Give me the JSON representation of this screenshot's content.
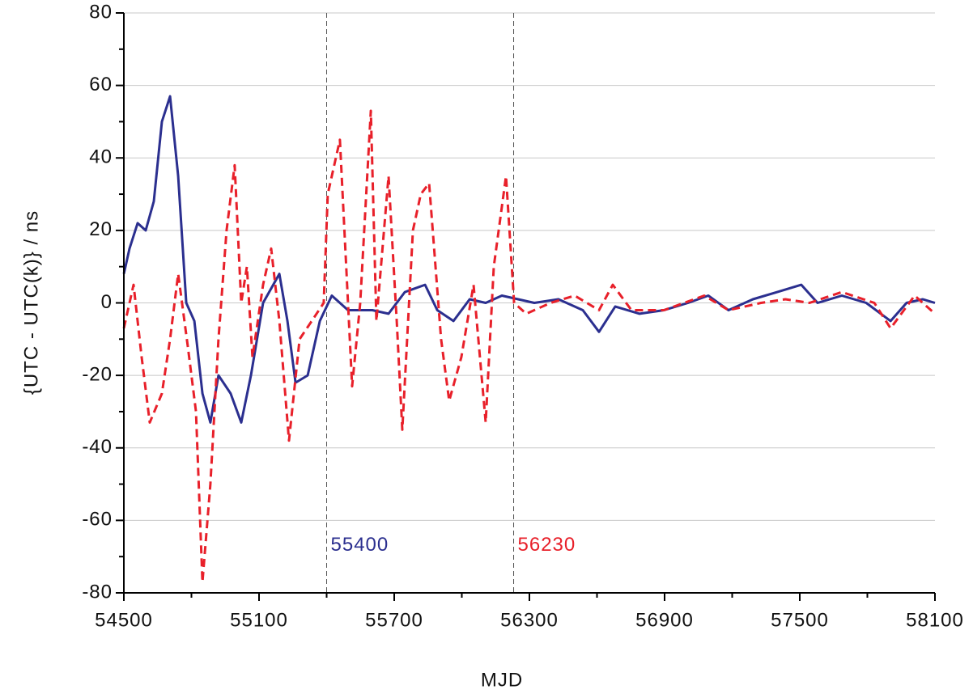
{
  "chart_data": {
    "type": "line",
    "xlabel": "MJD",
    "ylabel": "{UTC - UTC(k)} / ns",
    "xlim": [
      54500,
      58100
    ],
    "xticks": [
      54500,
      55100,
      55700,
      56300,
      56900,
      57500,
      58100
    ],
    "xminorticks": [
      54800,
      55400,
      56000,
      56600,
      57200,
      57800
    ],
    "ylim": [
      -80,
      80
    ],
    "yticks": [
      -80,
      -60,
      -40,
      -20,
      0,
      20,
      40,
      60,
      80
    ],
    "yminorticks": [
      -70,
      -50,
      -30,
      -10,
      10,
      30,
      50,
      70
    ],
    "grid": true,
    "series": [
      {
        "color": "#2b2f8f",
        "dash": false,
        "x": [
          54500,
          54525,
          54561,
          54597,
          54633,
          54669,
          54705,
          54741,
          54777,
          54813,
          54849,
          54884,
          54920,
          54974,
          55021,
          55064,
          55118,
          55190,
          55226,
          55262,
          55316,
          55370,
          55423,
          55495,
          55603,
          55675,
          55747,
          55837,
          55891,
          55963,
          56035,
          56106,
          56178,
          56250,
          56322,
          56429,
          56537,
          56609,
          56681,
          56789,
          56897,
          57004,
          57094,
          57184,
          57292,
          57400,
          57507,
          57579,
          57687,
          57795,
          57903,
          57974,
          58046,
          58100
        ],
        "values": [
          8,
          15,
          22,
          20,
          28,
          50,
          57,
          35,
          0,
          -5,
          -25,
          -33,
          -20,
          -25,
          -33,
          -20,
          0,
          8,
          -5,
          -22,
          -20,
          -5,
          2,
          -2,
          -2,
          -3,
          3,
          5,
          -2,
          -5,
          1,
          0,
          2,
          1,
          0,
          1,
          -2,
          -8,
          -1,
          -3,
          -2,
          0,
          2,
          -2,
          1,
          3,
          5,
          0,
          2,
          0,
          -5,
          0,
          1,
          0
        ]
      },
      {
        "color": "#e8202a",
        "dash": true,
        "x": [
          54500,
          54543,
          54579,
          54615,
          54669,
          54705,
          54741,
          54784,
          54820,
          54849,
          54884,
          54920,
          54956,
          54992,
          55021,
          55046,
          55071,
          55118,
          55154,
          55190,
          55233,
          55280,
          55334,
          55387,
          55405,
          55459,
          55487,
          55513,
          55549,
          55596,
          55621,
          55675,
          55711,
          55736,
          55783,
          55818,
          55855,
          55908,
          55944,
          55998,
          56052,
          56106,
          56142,
          56196,
          56232,
          56286,
          56394,
          56501,
          56609,
          56670,
          56753,
          56897,
          57076,
          57184,
          57328,
          57436,
          57543,
          57687,
          57831,
          57903,
          58010,
          58100
        ],
        "values": [
          -7,
          5,
          -15,
          -33,
          -25,
          -10,
          8,
          -12,
          -30,
          -77,
          -50,
          -10,
          20,
          38,
          0,
          10,
          -15,
          5,
          15,
          -5,
          -38,
          -10,
          -5,
          0,
          30,
          45,
          10,
          -23,
          0,
          53,
          -5,
          35,
          -5,
          -35,
          20,
          30,
          33,
          -10,
          -27,
          -15,
          5,
          -33,
          10,
          35,
          0,
          -3,
          0,
          2,
          -2,
          5,
          -2,
          -2,
          2,
          -2,
          0,
          1,
          0,
          3,
          0,
          -7,
          2,
          -3
        ]
      }
    ],
    "vlines": [
      {
        "value": 55400,
        "color": "#2b2f8f"
      },
      {
        "value": 56230,
        "color": "#e8202a"
      }
    ]
  }
}
